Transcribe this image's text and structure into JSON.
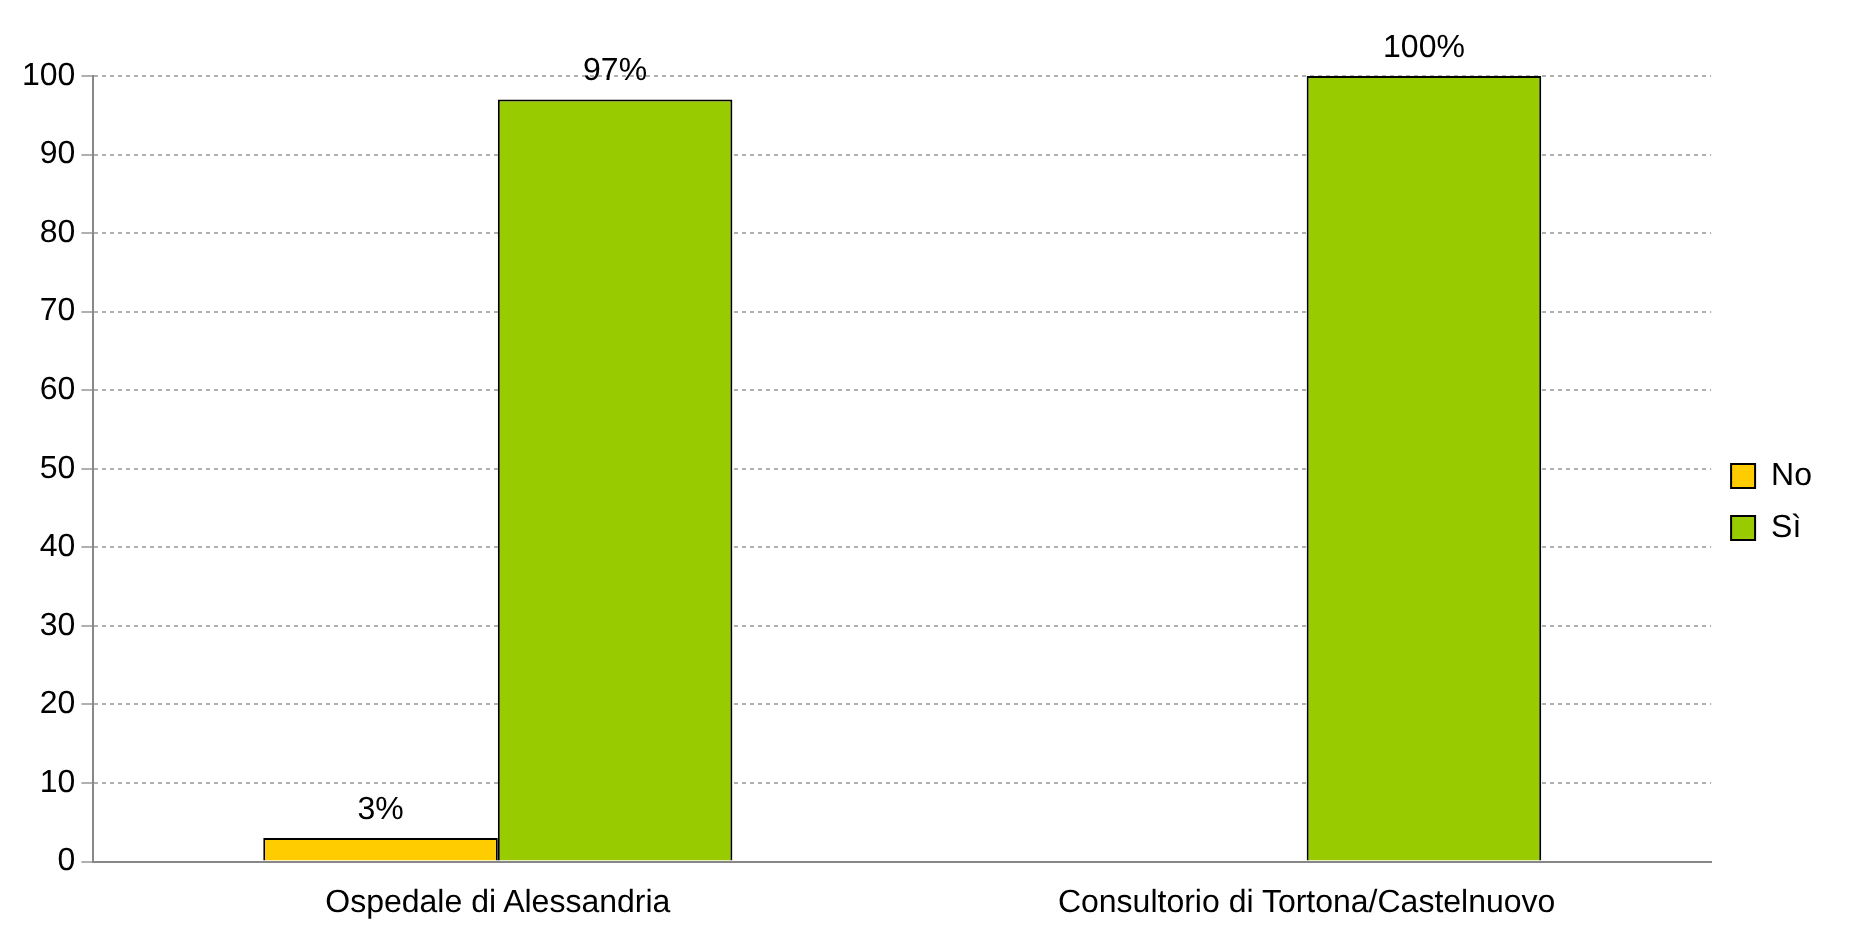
{
  "chart_data": {
    "type": "bar",
    "categories": [
      "Ospedale di Alessandria",
      "Consultorio di Tortona/Castelnuovo"
    ],
    "series": [
      {
        "name": "No",
        "color": "#ffcc00",
        "values": [
          3,
          null
        ],
        "value_labels": [
          "3%",
          null
        ]
      },
      {
        "name": "Sì",
        "color": "#99cc00",
        "values": [
          97,
          100
        ],
        "value_labels": [
          "97%",
          "100%"
        ]
      }
    ],
    "ylim": [
      0,
      100
    ],
    "yticks": [
      0,
      10,
      20,
      30,
      40,
      50,
      60,
      70,
      80,
      90,
      100
    ],
    "grid": "y",
    "legend": "right"
  }
}
